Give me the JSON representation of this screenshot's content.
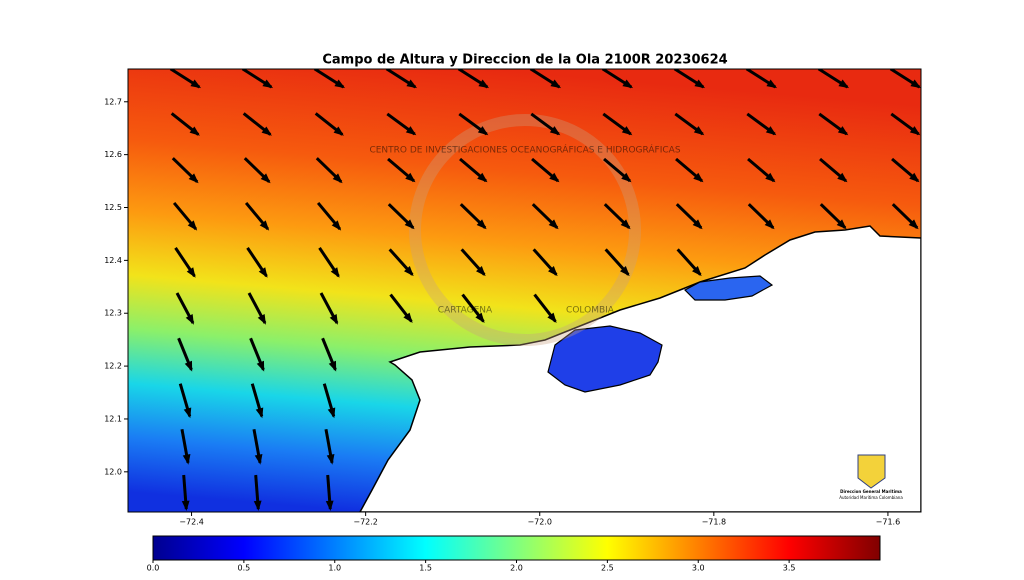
{
  "chart_data": {
    "type": "map",
    "title": "Campo de Altura y Direccion de la Ola 2100R 20230624",
    "xlim": [
      -72.473,
      -71.562
    ],
    "xticks": [
      {
        "value": -72.4,
        "label": "−72.4"
      },
      {
        "value": -72.2,
        "label": "−72.2"
      },
      {
        "value": -72.0,
        "label": "−72.0"
      },
      {
        "value": -71.8,
        "label": "−71.8"
      },
      {
        "value": -71.6,
        "label": "−71.6"
      }
    ],
    "ylim": [
      11.924,
      12.762
    ],
    "yticks": [
      {
        "value": 12.0,
        "label": "12.0"
      },
      12.1,
      12.2,
      12.3,
      12.4,
      12.5,
      12.6,
      12.7
    ],
    "colorbar": {
      "lim": [
        0,
        4
      ],
      "ticks": [
        {
          "value": 0,
          "label": "0.0"
        },
        0.5,
        {
          "value": 1,
          "label": "1.0"
        },
        1.5,
        {
          "value": 2,
          "label": "2.0"
        },
        2.5,
        {
          "value": 3,
          "label": "3.0"
        },
        3.5
      ]
    },
    "watermark": {
      "ring": "CENTRO DE INVESTIGACIONES OCEANOGRÁFICAS E HIDROGRÁFICAS",
      "bottom_left": "CARTAGENA",
      "bottom_right": "COLOMBIA"
    },
    "logo": {
      "name": "Direccion General Maritima",
      "subtitle": "Autoridad Maritima Colombiana"
    }
  }
}
